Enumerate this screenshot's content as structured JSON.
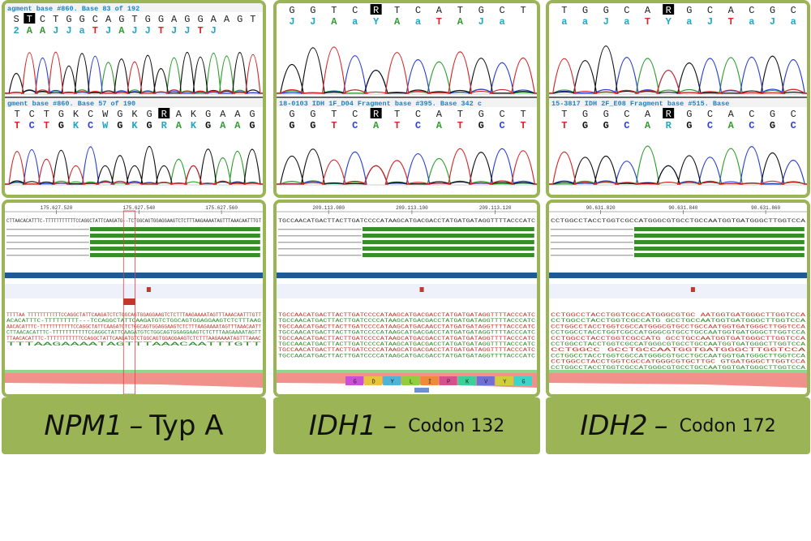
{
  "colors": {
    "frame": "#9bb556",
    "A": "#2f9e2f",
    "C": "#2a3fd6",
    "G": "#111111",
    "T": "#d62828",
    "ambig": "#22a6c8",
    "align_bar": "#3d8b2f",
    "ref_bar": "#1e5a96"
  },
  "panels": [
    {
      "id": "npm1",
      "label": {
        "gene": "NPM1",
        "dash": "–",
        "detail": "Typ A"
      },
      "chrom_top": {
        "header": "agment base #860. Base 83 of 192",
        "bases": "STCTGGCAGTGGAGGAAGT",
        "calls": "2AAJJaTJAJJTJJTJ"
      },
      "chrom_bottom": {
        "header": "gment base #860. Base 57 of 190",
        "bases": "TCTGKCWGKGRAKGAAG",
        "calls": "TCTGKCWGKGRAKGAAG"
      },
      "ruler": [
        "175.627.520",
        "175.627.540",
        "175.627.560"
      ],
      "ref_seq": "CTTAACACATTTC-TTTTTTTTTTTCCAGGCTATTCAAGATG--TCTGGCAGTGGAGGAAGTCTCTTTAAGAAAATAGTTTAAACAATTTGT",
      "reads": [
        "TTTTAA TTTTTTTTTTTCCAGGCTATTCAAGATCTCTGGCAGTGGAGGAAGTCTCTTTAAGAAAATAGTTTAAACAATTTGTT",
        "ACACATTTC-TTTTTTTTT---TCCAGGCTATTCAAGATGTCTGGCAGTGGAGGAAGTCTCTTTAAG",
        "AACACATTTC-TTTTTTTTTTTCCAGGCTATTCAAGATCTCTGGCAGTGGAGGAAGTCTCTTTAAGAAAATAGTTTAAACAATT",
        "CTTAACACATTTC-TTTTTTTTTTTCCAGGCTATTCAAGATGTCTGGCAGTGGAGGAAGTCTCTTTAAGAAAATAGTT",
        "TTAACACATTTC-TTTTTTTTTTTCCAGGCTATTCAAGATGTCTGGCAGTGGAGGAAGTCTCTTTAAGAAAATAGTTTAAAC",
        "TTTAAGAAAATAGTTTAAACAATTTGTT"
      ]
    },
    {
      "id": "idh1",
      "label": {
        "gene": "IDH1",
        "dash": "–",
        "detail": "Codon 132"
      },
      "chrom_top": {
        "header": "",
        "bases": "GGTCRTCATGCT",
        "calls": "JJAaYAaTAJa"
      },
      "chrom_bottom": {
        "header": "18-0103 IDH 1F_D04 Fragment base #395. Base 342 c",
        "bases": "GGTCRTCATGCT",
        "calls": "GGTCATCATGCT"
      },
      "ruler": [
        "209.113.080",
        "209.113.100",
        "209.113.120"
      ],
      "ref_seq": "TGCCAACATGACTTACTTGATCCCCATAAGCATGACGACCTATGATGATAGGTTTTACCCATC",
      "reads": [
        "TGCCAACATGACTTACTTGATCCCCATAAGCATGACGACCTATGATGATAGGTTTTACCCATC",
        "TGCCAACATGACTTACTTGATCCCCATAAGCATGACGACCTATGATGATAGGTTTTACCCATC",
        "TGCCAACATGACTTACTTGATCCCCATAAGCATGACAACCTATGATGATAGGTTTTACCCATC",
        "TGCCAACATGACTTACTTGATCCCCATAAGCATGACGACCTATGATGATAGGTTTTACCCATC",
        "TGCCAACATGACTTACTTGATCCCCATAAGCATGACGACCTATGATGATAGGTTTTACCCATC",
        "TGCCAACATGACTTACTTGATCCCCATAAGCATGACGACCTATGATGATAGGTTTTACCCATC",
        "TGCCAACATGACTTACTTGATCCCCATAAGCATGACGACCTATGATGATAGGTTTTACCCATC",
        "TGCCAACATGACTTACTTGATCCCCATAAGCATGACGACCTATGATGATAGGTTTTACCCATC"
      ],
      "aa_track": [
        "G",
        "D",
        "Y",
        "L",
        "I",
        "P",
        "K",
        "V",
        "Y",
        "G"
      ]
    },
    {
      "id": "idh2",
      "label": {
        "gene": "IDH2",
        "dash": "–",
        "detail": "Codon 172"
      },
      "chrom_top": {
        "header": "",
        "bases": "TGGCARGCACGC",
        "calls": "aaJaTYaJTaJa"
      },
      "chrom_bottom": {
        "header": "15-3817 IDH 2F_E08 Fragment base #515. Base",
        "bases": "TGGCARGCACGC",
        "calls": "TGGCARGCACGC"
      },
      "ruler": [
        "90.631.820",
        "90.631.840",
        "90.631.860"
      ],
      "ref_seq": "CCTGGCCTACCTGGTCGCCATGGGCGTGCCTGCCAATGGTGATGGGCTTGGTCCA",
      "reads": [
        "CCTGGCCTACCTGGTCGCCATGGGCGTGC      AATGGTGATGGGCTTGGTCCA",
        "CCTGGCCTACCTGGTCGCCATG       GCCTGCCAATGGTGATGGGCTTGGTCCA",
        "CCTGGCCTACCTGGTCGCCATGGGCGTGCCTGCCAATGGTGATGGGCTTGGTCCA",
        "CCTGGCCTACCTGGTCGCCATGGGCGTGCCTGCCAATGGTGATGGGCTTGGTCCA",
        "CCTGGCCTACCTGGTCGCCATG       GCCTGCCAATGGTGATGGGCTTGGTCCA",
        "CCTGGCCTACCTGGTCGCCATGGGCGTGCCTGCCAATGGTGATGGGCTTGGTCCA",
        "CCTGGCC         GCCTGCCAATGGTGATGGGCTTGGTCCA",
        "CCTGGCCTACCTGGTCGCCATGGGCGTGCCTGCCAATGGTGATGGGCTTGGTCCA",
        "CCTGGCCTACCTGGTCGCCATGGGCGTGCTTGC     GTGATGGGCTTGGTCCA",
        "CCTGGCCTACCTGGTCGCCATGGGCGTGCCTGCCAATGGTGATGGGCTTGGTCCA",
        "CCTGGCCTAACTGGTCGCCATGGGCGTGCCTGCCAATGGTGATGGGCTTGGTCCA",
        "CCTGGCCTACCTGGTCGCCATGGGCGTGCCTGCCAATGGTGATGGGCTTGGTCCA"
      ]
    }
  ]
}
